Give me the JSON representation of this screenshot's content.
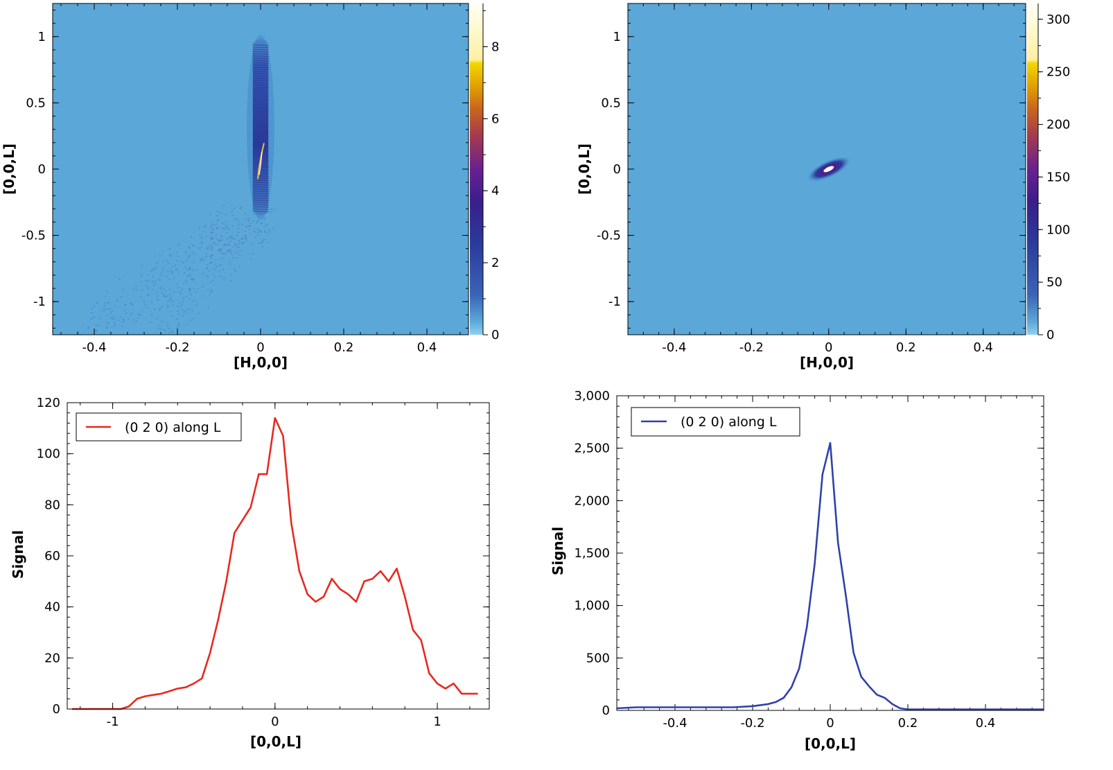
{
  "chart_data": [
    {
      "type": "heatmap",
      "xlabel": "[H,0,0]",
      "ylabel": "[0,0,L]",
      "xlim": [
        -0.5,
        0.5
      ],
      "ylim": [
        -1.25,
        1.25
      ],
      "xticks": [
        -0.4,
        -0.2,
        0,
        0.2,
        0.4
      ],
      "xtick_labels": [
        "-0.4",
        "-0.2",
        "0",
        "0.2",
        "0.4"
      ],
      "yticks": [
        -1,
        -0.5,
        0,
        0.5,
        1
      ],
      "ytick_labels": [
        "-1",
        "-0.5",
        "0",
        "0.5",
        "1"
      ],
      "background_color": "#5ba8d8",
      "colorbar": {
        "range": [
          0,
          9.2
        ],
        "ticks": [
          0,
          2,
          4,
          6,
          8
        ],
        "tick_labels": [
          "0",
          "2",
          "4",
          "6",
          "8"
        ]
      },
      "features": [
        {
          "kind": "streak",
          "h": 0.0,
          "l_from": -0.35,
          "l_to": 0.98,
          "peak_l": 0.05,
          "peak_value": 9.0
        },
        {
          "kind": "diffuse-tail",
          "from": [
            -0.33,
            -1.2
          ],
          "to": [
            -0.02,
            -0.35
          ],
          "value": 1.0
        }
      ]
    },
    {
      "type": "heatmap",
      "xlabel": "[H,0,0]",
      "ylabel": "[0,0,L]",
      "xlim": [
        -0.52,
        0.51
      ],
      "ylim": [
        -1.25,
        1.25
      ],
      "xticks": [
        -0.4,
        -0.2,
        0,
        0.2,
        0.4
      ],
      "xtick_labels": [
        "-0.4",
        "-0.2",
        "0",
        "0.2",
        "0.4"
      ],
      "yticks": [
        -1,
        -0.5,
        0,
        0.5,
        1
      ],
      "ytick_labels": [
        "-1",
        "-0.5",
        "0",
        "0.5",
        "1"
      ],
      "background_color": "#5ba8d8",
      "colorbar": {
        "range": [
          0,
          315
        ],
        "ticks": [
          0,
          50,
          100,
          150,
          200,
          250,
          300
        ],
        "tick_labels": [
          "0",
          "50",
          "100",
          "150",
          "200",
          "250",
          "300"
        ]
      },
      "features": [
        {
          "kind": "spot",
          "h": 0.0,
          "l": 0.0,
          "peak_value": 310,
          "tilt_deg": 25
        }
      ]
    },
    {
      "type": "line",
      "xlabel": "[0,0,L]",
      "ylabel": "Signal",
      "xlim": [
        -1.28,
        1.32
      ],
      "ylim": [
        0,
        120
      ],
      "xticks": [
        -1,
        0,
        1
      ],
      "xtick_labels": [
        "-1",
        "0",
        "1"
      ],
      "yticks": [
        0,
        20,
        40,
        60,
        80,
        100,
        120
      ],
      "ytick_labels": [
        "0",
        "20",
        "40",
        "60",
        "80",
        "100",
        "120"
      ],
      "legend": "top-left",
      "series": [
        {
          "name": "(0 2 0) along L",
          "color": "#e8281e",
          "x": [
            -1.25,
            -1.2,
            -1.15,
            -1.1,
            -1.05,
            -1.0,
            -0.95,
            -0.9,
            -0.85,
            -0.8,
            -0.75,
            -0.7,
            -0.65,
            -0.6,
            -0.55,
            -0.5,
            -0.45,
            -0.4,
            -0.35,
            -0.3,
            -0.25,
            -0.2,
            -0.15,
            -0.1,
            -0.05,
            0.0,
            0.05,
            0.1,
            0.15,
            0.2,
            0.25,
            0.3,
            0.35,
            0.4,
            0.45,
            0.5,
            0.55,
            0.6,
            0.65,
            0.7,
            0.75,
            0.8,
            0.85,
            0.9,
            0.95,
            1.0,
            1.05,
            1.1,
            1.15,
            1.2,
            1.25
          ],
          "y": [
            0,
            0,
            0,
            0,
            0,
            0,
            0,
            1,
            4,
            5,
            5.5,
            6,
            7,
            8,
            8.5,
            10,
            12,
            22,
            35,
            50,
            69,
            74,
            79,
            92,
            92,
            114,
            107,
            73,
            54,
            45,
            42,
            44,
            51,
            47,
            45,
            42,
            50,
            51,
            54,
            50,
            55,
            44,
            31,
            27,
            14,
            10,
            8,
            10,
            6,
            6,
            6
          ]
        }
      ]
    },
    {
      "type": "line",
      "xlabel": "[0,0,L]",
      "ylabel": "Signal",
      "xlim": [
        -0.55,
        0.55
      ],
      "ylim": [
        0,
        3000
      ],
      "xticks": [
        -0.4,
        -0.2,
        0,
        0.2,
        0.4
      ],
      "xtick_labels": [
        "-0.4",
        "-0.2",
        "0",
        "0.2",
        "0.4"
      ],
      "yticks": [
        0,
        500,
        1000,
        1500,
        2000,
        2500,
        3000
      ],
      "ytick_labels": [
        "0",
        "500",
        "1,000",
        "1,500",
        "2,000",
        "2,500",
        "3,000"
      ],
      "legend": "top-left",
      "series": [
        {
          "name": "(0 2 0) along L",
          "color": "#3040a8",
          "x": [
            -0.55,
            -0.5,
            -0.45,
            -0.4,
            -0.35,
            -0.3,
            -0.25,
            -0.2,
            -0.16,
            -0.14,
            -0.12,
            -0.1,
            -0.08,
            -0.06,
            -0.04,
            -0.02,
            0.0,
            0.02,
            0.04,
            0.06,
            0.08,
            0.1,
            0.12,
            0.14,
            0.16,
            0.18,
            0.2,
            0.3,
            0.4,
            0.5,
            0.55
          ],
          "y": [
            20,
            30,
            30,
            30,
            30,
            30,
            30,
            40,
            60,
            80,
            120,
            220,
            400,
            800,
            1400,
            2250,
            2550,
            1600,
            1100,
            550,
            320,
            230,
            150,
            120,
            60,
            20,
            10,
            10,
            10,
            10,
            10
          ]
        }
      ]
    }
  ]
}
